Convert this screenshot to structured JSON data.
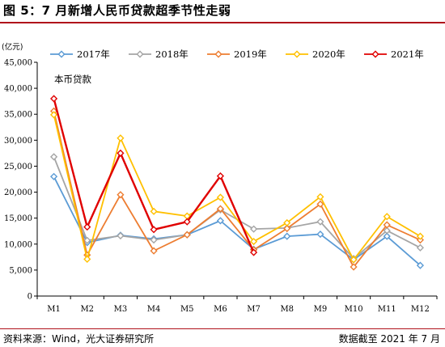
{
  "figure": {
    "title": "图 5：7 月新增人民币贷款超季节性走弱",
    "source": "资料来源：Wind，光大证券研究所",
    "as_of": "数据截至 2021 年 7 月"
  },
  "colors": {
    "accent_rule": "#b0121b"
  },
  "chart_data": {
    "type": "line",
    "unit_label": "(亿元)",
    "annotation": "本币贷款",
    "ylim": [
      0,
      45000
    ],
    "y_ticks": [
      "0",
      "5,000",
      "10,000",
      "15,000",
      "20,000",
      "25,000",
      "30,000",
      "35,000",
      "40,000",
      "45,000"
    ],
    "y_tick_values": [
      0,
      5000,
      10000,
      15000,
      20000,
      25000,
      30000,
      35000,
      40000,
      45000
    ],
    "categories": [
      "M1",
      "M2",
      "M3",
      "M4",
      "M5",
      "M6",
      "M7",
      "M8",
      "M9",
      "M10",
      "M11",
      "M12"
    ],
    "grid": false,
    "legend_position": "top",
    "series": [
      {
        "name": "2017年",
        "color": "#5b9bd5",
        "values": [
          23000,
          10300,
          11700,
          11000,
          11800,
          14500,
          9000,
          11500,
          11900,
          7000,
          11500,
          5900
        ]
      },
      {
        "name": "2018年",
        "color": "#a5a5a5",
        "values": [
          26800,
          10700,
          11600,
          10800,
          11800,
          16600,
          12900,
          13100,
          14300,
          7200,
          12600,
          9300
        ]
      },
      {
        "name": "2019年",
        "color": "#ed7d31",
        "values": [
          35600,
          7900,
          19500,
          8700,
          11800,
          16800,
          8900,
          13000,
          17700,
          5600,
          13700,
          10800
        ]
      },
      {
        "name": "2020年",
        "color": "#ffc000",
        "values": [
          34900,
          7100,
          30400,
          16300,
          15400,
          19000,
          10500,
          14100,
          19100,
          7000,
          15300,
          11500
        ]
      },
      {
        "name": "2021年",
        "color": "#e00000",
        "values": [
          38000,
          13300,
          27500,
          12800,
          14300,
          23100,
          8400,
          null,
          null,
          null,
          null,
          null
        ]
      }
    ]
  }
}
